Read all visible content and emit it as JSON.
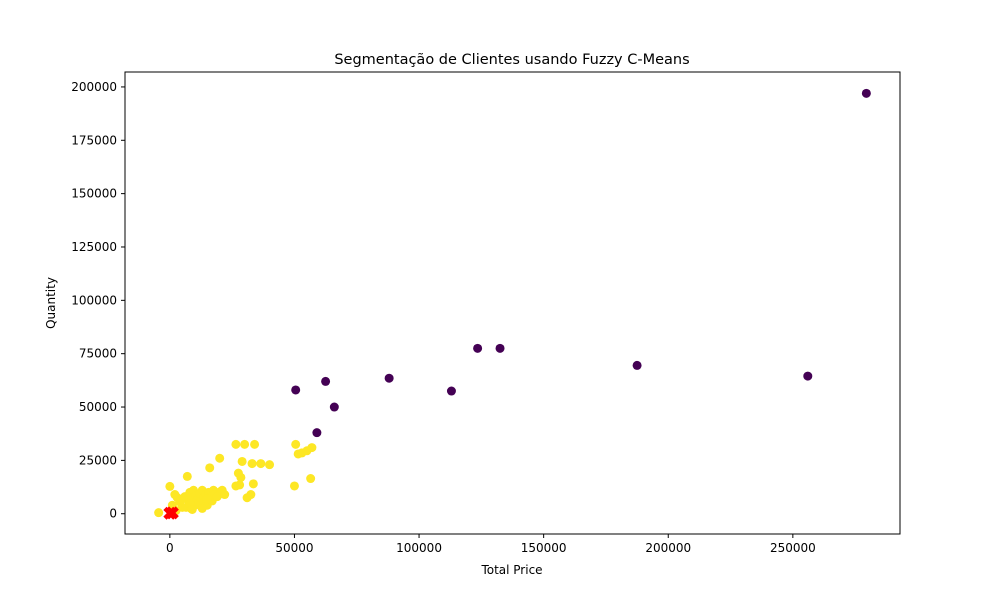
{
  "chart_data": {
    "type": "scatter",
    "title": "Segmentação de Clientes usando Fuzzy C-Means",
    "xlabel": "Total Price",
    "ylabel": "Quantity",
    "xlim": [
      -18000,
      293000
    ],
    "ylim": [
      -9500,
      207000
    ],
    "xticks": [
      0,
      50000,
      100000,
      150000,
      200000,
      250000
    ],
    "yticks": [
      0,
      25000,
      50000,
      75000,
      100000,
      125000,
      150000,
      175000,
      200000
    ],
    "xtick_labels": [
      "0",
      "50000",
      "100000",
      "150000",
      "200000",
      "250000"
    ],
    "ytick_labels": [
      "0",
      "25000",
      "50000",
      "75000",
      "100000",
      "125000",
      "150000",
      "175000",
      "200000"
    ],
    "grid": false,
    "colors": {
      "cluster_0": "#440154",
      "cluster_1": "#fde725",
      "centroid": "#ff0000"
    },
    "series": [
      {
        "cluster": 0,
        "points": [
          [
            279500,
            197000
          ],
          [
            256000,
            64500
          ],
          [
            187500,
            69500
          ],
          [
            132500,
            77500
          ],
          [
            123500,
            77500
          ],
          [
            113000,
            57500
          ],
          [
            88000,
            63500
          ],
          [
            62500,
            62000
          ],
          [
            66000,
            50000
          ],
          [
            50500,
            58000
          ],
          [
            59000,
            38000
          ]
        ]
      },
      {
        "cluster": 1,
        "points": [
          [
            -4500,
            500
          ],
          [
            0,
            12800
          ],
          [
            2000,
            9000
          ],
          [
            3000,
            7500
          ],
          [
            4000,
            5500
          ],
          [
            5000,
            3000
          ],
          [
            6000,
            8000
          ],
          [
            7000,
            17500
          ],
          [
            7500,
            6000
          ],
          [
            8000,
            10000
          ],
          [
            8500,
            2500
          ],
          [
            9000,
            7000
          ],
          [
            9500,
            11000
          ],
          [
            10000,
            4000
          ],
          [
            10500,
            8500
          ],
          [
            11000,
            6500
          ],
          [
            12000,
            9500
          ],
          [
            12500,
            3500
          ],
          [
            13000,
            11000
          ],
          [
            13500,
            7500
          ],
          [
            14000,
            5500
          ],
          [
            14500,
            9000
          ],
          [
            15000,
            4000
          ],
          [
            15500,
            10000
          ],
          [
            16000,
            21500
          ],
          [
            16500,
            8000
          ],
          [
            17000,
            6000
          ],
          [
            17500,
            11000
          ],
          [
            18000,
            9000
          ],
          [
            19000,
            8000
          ],
          [
            20000,
            26000
          ],
          [
            20500,
            10500
          ],
          [
            21000,
            11000
          ],
          [
            22000,
            9000
          ],
          [
            26500,
            32500
          ],
          [
            26500,
            13000
          ],
          [
            27500,
            19000
          ],
          [
            28000,
            13500
          ],
          [
            28500,
            17000
          ],
          [
            29000,
            24500
          ],
          [
            30000,
            32500
          ],
          [
            31000,
            7500
          ],
          [
            32500,
            9000
          ],
          [
            33000,
            23500
          ],
          [
            33500,
            14000
          ],
          [
            34000,
            32500
          ],
          [
            36500,
            23500
          ],
          [
            40000,
            23000
          ],
          [
            50000,
            13000
          ],
          [
            50500,
            32500
          ],
          [
            51500,
            28000
          ],
          [
            53000,
            28500
          ],
          [
            55000,
            29500
          ],
          [
            56500,
            16500
          ],
          [
            57000,
            31000
          ],
          [
            1000,
            4000
          ],
          [
            2500,
            1500
          ],
          [
            4500,
            6500
          ],
          [
            6500,
            3000
          ],
          [
            8000,
            4500
          ],
          [
            9000,
            2000
          ],
          [
            11500,
            5000
          ],
          [
            13000,
            2500
          ],
          [
            15000,
            7000
          ]
        ]
      }
    ],
    "centroids": [
      [
        0,
        200
      ],
      [
        1000,
        400
      ]
    ]
  }
}
